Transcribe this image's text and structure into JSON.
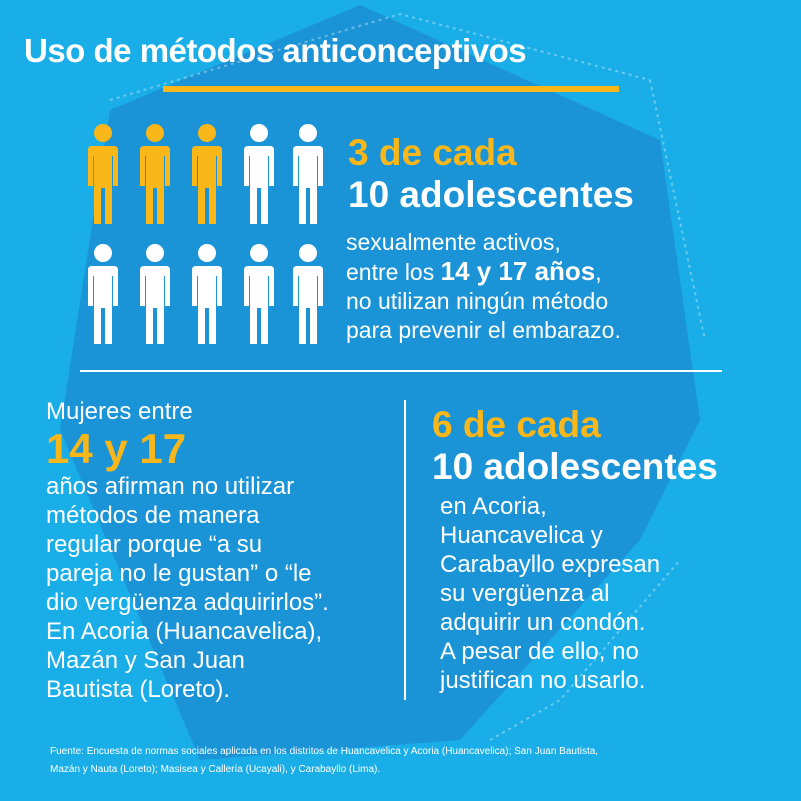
{
  "title": "Uso de métodos anticonceptivos",
  "colors": {
    "background": "#1aaee8",
    "accent": "#f9b71a",
    "text": "#ffffff",
    "shape": "#1b8fd2"
  },
  "people_icons": {
    "total": 10,
    "highlighted": 3
  },
  "stat1": {
    "line1": "3 de cada",
    "line2": "10 adolescentes",
    "body_line1": "sexualmente activos,",
    "body_line2_pre": "entre los ",
    "body_line2_bold": "14 y 17 años",
    "body_line2_post": ",",
    "body_line3": "no utilizan ningún método",
    "body_line4": "para prevenir el embarazo."
  },
  "left": {
    "intro": "Mujeres entre",
    "big": "14 y 17",
    "body": "años afirman no utilizar\nmétodos de manera\nregular porque “a su\npareja no le gustan” o “le\ndio vergüenza adquirirlos”.\nEn Acoria (Huancavelica),\nMazán y San Juan\nBautista (Loreto)."
  },
  "right": {
    "line1": "6 de cada",
    "line2": "10 adolescentes",
    "body": "en Acoria,\nHuancavelica y\nCarabayllo expresan\nsu vergüenza al\nadquirir un condón.\nA pesar de ello, no\njustifican no usarlo."
  },
  "footer": "Fuente: Encuesta de normas sociales aplicada en los distritos de Huancavelica y Acoria (Huancavelica); San Juan Bautista,\nMazán y Nauta (Loreto); Masisea y Callería (Ucayali), y Carabayllo (Lima)."
}
